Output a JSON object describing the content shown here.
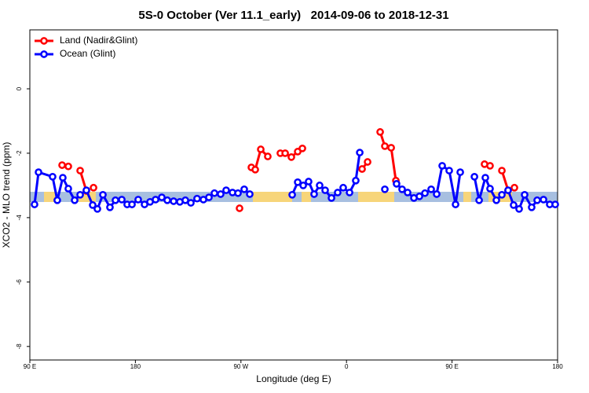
{
  "chart_data": {
    "type": "line",
    "title": "5S-0 October (Ver 11.1_early)   2014-09-06 to 2018-12-31",
    "x_label": "Longitude (deg E)",
    "y_label": "XCO2 - MLO trend (ppm)",
    "xlim": [
      90,
      540
    ],
    "ylim": [
      -8.42,
      1.83
    ],
    "xticks": [
      {
        "value": 90,
        "label": "90 E"
      },
      180,
      {
        "value": 270,
        "label": "90 W"
      },
      {
        "value": 360,
        "label": "0"
      },
      {
        "value": 450,
        "label": "90 E"
      },
      180
    ],
    "yticks": [
      0,
      -2,
      -4,
      -6,
      -8
    ],
    "legend": "top-left",
    "series": [
      {
        "name": "Land (Nadir&Glint)",
        "color": "#ff0000",
        "x": [
          117.5,
          122.8,
          null,
          132.9,
          138.2,
          null,
          144.3,
          null,
          268.8,
          null,
          278.9,
          282.2,
          286.9,
          292.9,
          null,
          303.6,
          307.7,
          313.0,
          318.4,
          322.4,
          null,
          373.3,
          378.0,
          null,
          388.7,
          392.7,
          398.1,
          402.1,
          null,
          477.7,
          482.4,
          null,
          492.5,
          497.8,
          null,
          503.2
        ],
        "values": [
          -2.37,
          -2.41,
          null,
          -2.54,
          -3.17,
          null,
          -3.07,
          null,
          -3.71,
          null,
          -2.44,
          -2.51,
          -1.88,
          -2.1,
          null,
          -2.0,
          -2.0,
          -2.12,
          -1.95,
          -1.85,
          null,
          -2.49,
          -2.27,
          null,
          -1.34,
          -1.78,
          -1.83,
          -2.85,
          null,
          -2.34,
          -2.39,
          null,
          -2.54,
          -3.15,
          null,
          -3.07
        ]
      },
      {
        "name": "Ocean (Glint)",
        "color": "#0000ff",
        "x": [
          94.0,
          97.4,
          109.4,
          113.4,
          118.1,
          122.8,
          128.2,
          132.9,
          138.2,
          143.6,
          147.6,
          152.3,
          158.3,
          163.0,
          168.4,
          173.0,
          177.1,
          182.4,
          187.8,
          192.5,
          197.2,
          202.5,
          207.2,
          212.6,
          217.9,
          222.6,
          227.3,
          232.6,
          238.0,
          242.7,
          247.4,
          252.7,
          257.4,
          262.8,
          267.5,
          272.8,
          277.5,
          null,
          313.7,
          318.4,
          323.1,
          327.7,
          332.4,
          337.1,
          341.8,
          347.2,
          352.5,
          357.2,
          362.6,
          367.9,
          371.3,
          null,
          392.7,
          null,
          402.7,
          407.4,
          412.1,
          417.5,
          422.2,
          426.9,
          432.2,
          436.9,
          441.6,
          447.6,
          453.0,
          457.0,
          null,
          469.1,
          473.1,
          478.4,
          482.4,
          487.8,
          492.5,
          497.8,
          502.5,
          507.2,
          511.9,
          517.9,
          522.6,
          528.0,
          533.3,
          538.0
        ],
        "values": [
          -3.59,
          -2.59,
          -2.73,
          -3.46,
          -2.76,
          -3.1,
          -3.46,
          -3.29,
          -3.15,
          -3.61,
          -3.73,
          -3.29,
          -3.68,
          -3.46,
          -3.44,
          -3.59,
          -3.59,
          -3.44,
          -3.59,
          -3.51,
          -3.44,
          -3.37,
          -3.46,
          -3.49,
          -3.51,
          -3.46,
          -3.54,
          -3.41,
          -3.44,
          -3.37,
          -3.24,
          -3.27,
          -3.15,
          -3.22,
          -3.24,
          -3.12,
          -3.27,
          null,
          -3.29,
          -2.9,
          -3.0,
          -2.88,
          -3.27,
          -3.0,
          -3.15,
          -3.39,
          -3.22,
          -3.07,
          -3.22,
          -2.85,
          -1.98,
          null,
          -3.12,
          null,
          -2.95,
          -3.12,
          -3.22,
          -3.39,
          -3.34,
          -3.24,
          -3.12,
          -3.27,
          -2.39,
          -2.54,
          -3.59,
          -2.59,
          null,
          -2.73,
          -3.46,
          -2.76,
          -3.1,
          -3.46,
          -3.29,
          -3.15,
          -3.61,
          -3.73,
          -3.29,
          -3.68,
          -3.46,
          -3.44,
          -3.59,
          -3.59
        ]
      }
    ]
  }
}
